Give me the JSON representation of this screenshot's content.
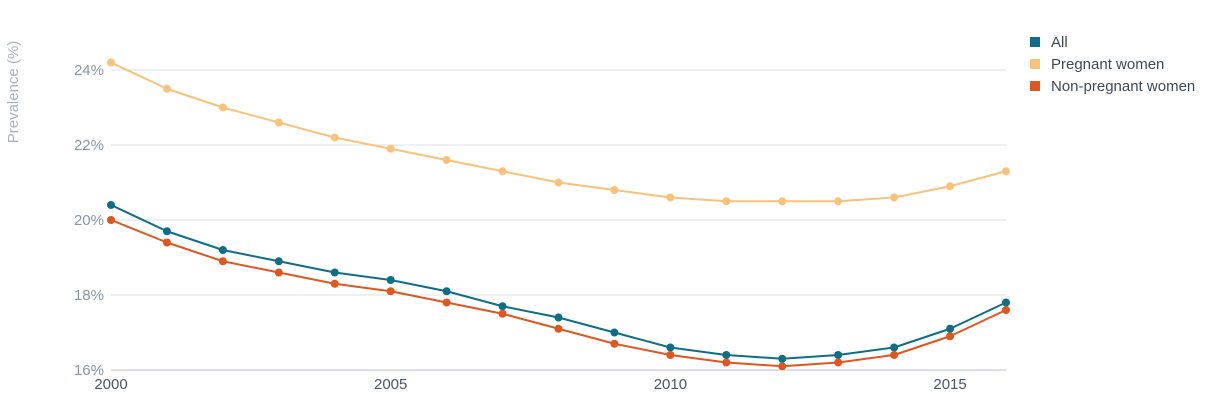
{
  "chart_data": {
    "type": "line",
    "title": "",
    "xlabel": "",
    "ylabel": "Prevalence (%)",
    "x": [
      2000,
      2001,
      2002,
      2003,
      2004,
      2005,
      2006,
      2007,
      2008,
      2009,
      2010,
      2011,
      2012,
      2013,
      2014,
      2015,
      2016
    ],
    "xlim": [
      2000,
      2016
    ],
    "ylim": [
      16,
      24.8
    ],
    "x_ticks": [
      2000,
      2005,
      2010,
      2015
    ],
    "x_tick_labels": [
      "2000",
      "2005",
      "2010",
      "2015"
    ],
    "y_ticks": [
      16,
      18,
      20,
      22,
      24
    ],
    "y_tick_labels": [
      "16%",
      "18%",
      "20%",
      "22%",
      "24%"
    ],
    "grid": true,
    "legend_position": "top-right",
    "series": [
      {
        "name": "All",
        "color": "#0f6e87",
        "values": [
          20.4,
          19.7,
          19.2,
          18.9,
          18.6,
          18.4,
          18.1,
          17.7,
          17.4,
          17.0,
          16.6,
          16.4,
          16.3,
          16.4,
          16.6,
          17.1,
          17.8
        ]
      },
      {
        "name": "Pregnant women",
        "color": "#f9c27a",
        "values": [
          24.2,
          23.5,
          23.0,
          22.6,
          22.2,
          21.9,
          21.6,
          21.3,
          21.0,
          20.8,
          20.6,
          20.5,
          20.5,
          20.5,
          20.6,
          20.9,
          21.3
        ]
      },
      {
        "name": "Non-pregnant women",
        "color": "#e0561f",
        "values": [
          20.0,
          19.4,
          18.9,
          18.6,
          18.3,
          18.1,
          17.8,
          17.5,
          17.1,
          16.7,
          16.4,
          16.2,
          16.1,
          16.2,
          16.4,
          16.9,
          17.6
        ]
      }
    ]
  },
  "colors": {
    "grid": "#d9e0e6",
    "axis": "#b8c2cb"
  }
}
